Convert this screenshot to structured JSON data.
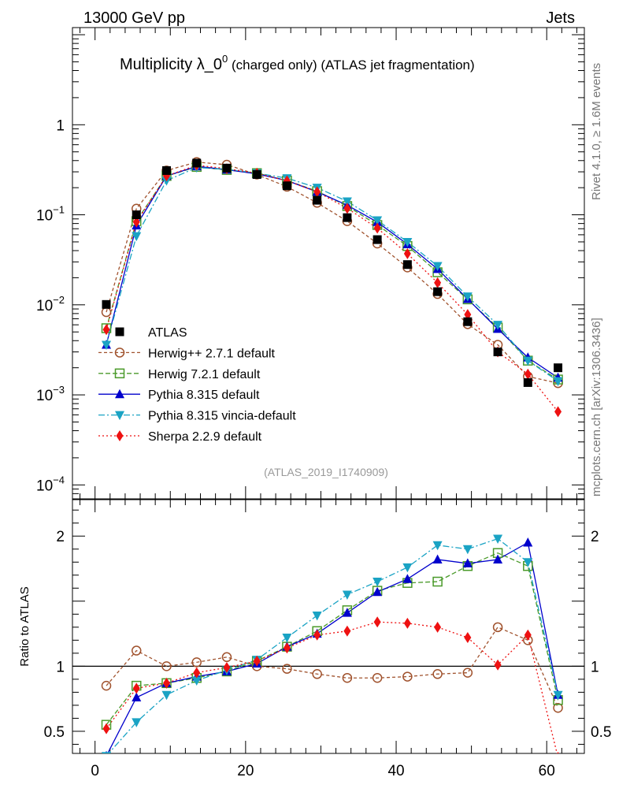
{
  "header": {
    "left": "13000 GeV pp",
    "right": "Jets"
  },
  "title": {
    "main": "Multiplicity λ_0",
    "sup": "0",
    "rest": " (charged only) (ATLAS jet fragmentation)"
  },
  "side_labels": {
    "rivet": "Rivet 4.1.0, ≥ 1.6M events",
    "mcplots": "mcplots.cern.ch [arXiv:1306.3436]"
  },
  "analysis_id": "(ATLAS_2019_I1740909)",
  "ratio_ylabel": "Ratio to ATLAS",
  "colors": {
    "atlas": "#000000",
    "herwigpp": "#a0522d",
    "herwig7": "#4a9a2a",
    "pythia": "#0000cc",
    "vincia": "#1aa3c4",
    "sherpa": "#ee1111"
  },
  "chart_data": [
    {
      "type": "scatter",
      "panel": "main",
      "scale": "log",
      "ylim": [
        7e-05,
        12
      ],
      "xlim": [
        -3,
        65
      ],
      "yticks": [
        {
          "value": 0.0001,
          "base": "10",
          "exp": "−4"
        },
        {
          "value": 0.001,
          "base": "10",
          "exp": "−3"
        },
        {
          "value": 0.01,
          "base": "10",
          "exp": "−2"
        },
        {
          "value": 0.1,
          "base": "10",
          "exp": "−1"
        },
        {
          "value": 1,
          "base": "1",
          "exp": ""
        }
      ],
      "x": [
        1.5,
        5.5,
        9.5,
        13.5,
        17.5,
        21.5,
        25.5,
        29.5,
        33.5,
        37.5,
        41.5,
        45.5,
        49.5,
        53.5,
        57.5,
        61.5
      ],
      "series": [
        {
          "key": "atlas",
          "name": "ATLAS",
          "marker": "square-filled",
          "dash": "none",
          "values": [
            0.0101,
            0.1,
            0.31,
            0.375,
            0.33,
            0.28,
            0.21,
            0.145,
            0.093,
            0.053,
            0.028,
            0.014,
            0.0065,
            0.003,
            0.00137,
            0.002
          ]
        },
        {
          "key": "herwigpp",
          "name": "Herwig++ 2.7.1 default",
          "marker": "circle-open",
          "dash": "4,3",
          "values": [
            0.0083,
            0.117,
            0.31,
            0.385,
            0.36,
            0.28,
            0.205,
            0.136,
            0.085,
            0.048,
            0.026,
            0.0132,
            0.0061,
            0.0036,
            0.0016,
            0.00135
          ]
        },
        {
          "key": "herwig7",
          "name": "Herwig 7.2.1 default",
          "marker": "square-open",
          "dash": "6,3",
          "values": [
            0.0055,
            0.085,
            0.27,
            0.34,
            0.315,
            0.29,
            0.24,
            0.183,
            0.125,
            0.077,
            0.045,
            0.023,
            0.0115,
            0.0056,
            0.0024,
            0.00148
          ]
        },
        {
          "key": "pythia",
          "name": "Pythia 8.315 default",
          "marker": "triangle-up",
          "dash": "none",
          "values": [
            0.0036,
            0.076,
            0.27,
            0.345,
            0.317,
            0.285,
            0.24,
            0.18,
            0.128,
            0.083,
            0.047,
            0.025,
            0.0116,
            0.0054,
            0.0026,
            0.00155
          ]
        },
        {
          "key": "vincia",
          "name": "Pythia 8.315 vincia-default",
          "marker": "triangle-down",
          "dash": "8,3,2,3",
          "values": [
            0.0036,
            0.058,
            0.24,
            0.335,
            0.32,
            0.29,
            0.255,
            0.2,
            0.141,
            0.087,
            0.05,
            0.027,
            0.0124,
            0.006,
            0.0024,
            0.00142
          ]
        },
        {
          "key": "sherpa",
          "name": "Sherpa 2.2.9 default",
          "marker": "diamond",
          "dash": "2,3",
          "values": [
            0.0053,
            0.083,
            0.27,
            0.355,
            0.325,
            0.29,
            0.238,
            0.18,
            0.118,
            0.071,
            0.037,
            0.0176,
            0.0078,
            0.003,
            0.0017,
            0.00065
          ]
        }
      ]
    },
    {
      "type": "scatter",
      "panel": "ratio",
      "reference_line": 1,
      "ylim": [
        0.33,
        2.28
      ],
      "xlim": [
        -3,
        65
      ],
      "ylabel": "Ratio to ATLAS",
      "yticks": [
        {
          "value": 0.5,
          "label": "0.5"
        },
        {
          "value": 1,
          "label": "1"
        },
        {
          "value": 2,
          "label": "2"
        }
      ],
      "xticks": [
        {
          "value": 0,
          "label": "0"
        },
        {
          "value": 20,
          "label": "20"
        },
        {
          "value": 40,
          "label": "40"
        },
        {
          "value": 60,
          "label": "60"
        }
      ],
      "x": [
        1.5,
        5.5,
        9.5,
        13.5,
        17.5,
        21.5,
        25.5,
        29.5,
        33.5,
        37.5,
        41.5,
        45.5,
        49.5,
        53.5,
        57.5,
        61.5
      ],
      "series": [
        {
          "key": "herwigpp",
          "name": "Herwig++ 2.7.1 default",
          "marker": "circle-open",
          "dash": "4,3",
          "values": [
            0.85,
            1.12,
            1.0,
            1.03,
            1.07,
            1.0,
            0.98,
            0.94,
            0.91,
            0.91,
            0.92,
            0.94,
            0.95,
            1.3,
            1.2,
            0.68
          ]
        },
        {
          "key": "herwig7",
          "name": "Herwig 7.2.1 default",
          "marker": "square-open",
          "dash": "6,3",
          "values": [
            0.55,
            0.85,
            0.87,
            0.91,
            0.96,
            1.04,
            1.15,
            1.27,
            1.43,
            1.58,
            1.64,
            1.65,
            1.77,
            1.87,
            1.77,
            0.74
          ]
        },
        {
          "key": "pythia",
          "name": "Pythia 8.315 default",
          "marker": "triangle-up",
          "dash": "none",
          "values": [
            0.31,
            0.76,
            0.87,
            0.92,
            0.96,
            1.02,
            1.15,
            1.25,
            1.41,
            1.57,
            1.67,
            1.82,
            1.79,
            1.82,
            1.95,
            0.78
          ]
        },
        {
          "key": "vincia",
          "name": "Pythia 8.315 vincia-default",
          "marker": "triangle-down",
          "dash": "8,3,2,3",
          "values": [
            0.31,
            0.57,
            0.78,
            0.89,
            0.97,
            1.05,
            1.22,
            1.39,
            1.55,
            1.65,
            1.76,
            1.93,
            1.9,
            1.98,
            1.8,
            0.78
          ]
        },
        {
          "key": "sherpa",
          "name": "Sherpa 2.2.9 default",
          "marker": "diamond",
          "dash": "2,3",
          "values": [
            0.52,
            0.83,
            0.87,
            0.95,
            0.99,
            1.04,
            1.14,
            1.24,
            1.27,
            1.34,
            1.33,
            1.3,
            1.22,
            1.01,
            1.24,
            0.3
          ]
        }
      ]
    }
  ]
}
